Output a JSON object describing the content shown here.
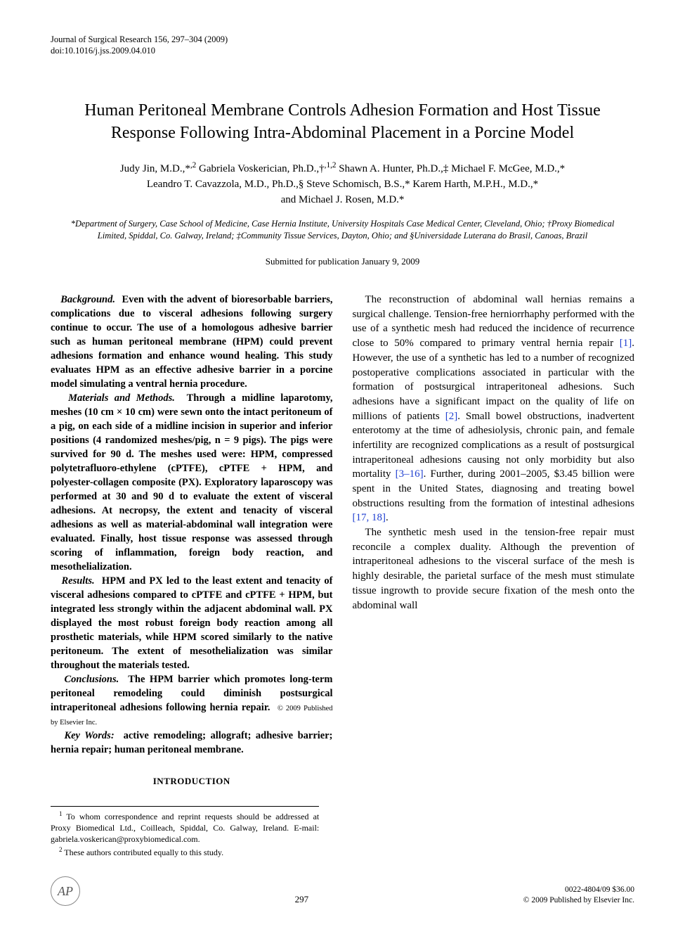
{
  "journal": {
    "citation": "Journal of Surgical Research 156, 297–304 (2009)",
    "doi": "doi:10.1016/j.jss.2009.04.010"
  },
  "title": "Human Peritoneal Membrane Controls Adhesion Formation and Host Tissue Response Following Intra-Abdominal Placement in a Porcine Model",
  "authors_html": "Judy Jin, M.D.,*<sup>,2</sup> Gabriela Voskerician, Ph.D.,†<sup>,1,2</sup> Shawn A. Hunter, Ph.D.,‡ Michael F. McGee, M.D.,* Leandro T. Cavazzola, M.D., Ph.D.,§ Steve Schomisch, B.S.,* Karem Harth, M.P.H., M.D.,* and Michael J. Rosen, M.D.*",
  "affiliations": "*Department of Surgery, Case School of Medicine, Case Hernia Institute, University Hospitals Case Medical Center, Cleveland, Ohio; †Proxy Biomedical Limited, Spiddal, Co. Galway, Ireland; ‡Community Tissue Services, Dayton, Ohio; and §Universidade Luterana do Brasil, Canoas, Brazil",
  "submitted": "Submitted for publication January 9, 2009",
  "abstract": {
    "background": {
      "label": "Background.",
      "text": "Even with the advent of bioresorbable barriers, complications due to visceral adhesions following surgery continue to occur. The use of a homologous adhesive barrier such as human peritoneal membrane (HPM) could prevent adhesions formation and enhance wound healing. This study evaluates HPM as an effective adhesive barrier in a porcine model simulating a ventral hernia procedure."
    },
    "methods": {
      "label": "Materials and Methods.",
      "text": "Through a midline laparotomy, meshes (10 cm × 10 cm) were sewn onto the intact peritoneum of a pig, on each side of a midline incision in superior and inferior positions (4 randomized meshes/pig, n = 9 pigs). The pigs were survived for 90 d. The meshes used were: HPM, compressed polytetrafluoro-ethylene (cPTFE), cPTFE + HPM, and polyester-collagen composite (PX). Exploratory laparoscopy was performed at 30 and 90 d to evaluate the extent of visceral adhesions. At necropsy, the extent and tenacity of visceral adhesions as well as material-abdominal wall integration were evaluated. Finally, host tissue response was assessed through scoring of inflammation, foreign body reaction, and mesothelialization."
    },
    "results": {
      "label": "Results.",
      "text": "HPM and PX led to the least extent and tenacity of visceral adhesions compared to cPTFE and cPTFE + HPM, but integrated less strongly within the adjacent abdominal wall. PX displayed the most robust foreign body reaction among all prosthetic materials, while HPM scored similarly to the native peritoneum. The extent of mesothelialization was similar throughout the materials tested."
    },
    "conclusions": {
      "label": "Conclusions.",
      "text": "The HPM barrier which promotes long-term peritoneal remodeling could diminish postsurgical intraperitoneal adhesions following hernia repair.",
      "copyright": "© 2009 Published by Elsevier Inc."
    },
    "keywords": {
      "label": "Key Words:",
      "text": "active remodeling; allograft; adhesive barrier; hernia repair; human peritoneal membrane."
    }
  },
  "introduction": {
    "heading": "INTRODUCTION",
    "para1_pre": "The reconstruction of abdominal wall hernias remains a surgical challenge. Tension-free herniorrhaphy performed with the use of a synthetic mesh had reduced the incidence of recurrence close to 50% compared to primary ventral hernia repair ",
    "ref1": "[1]",
    "para1_mid1": ". However, the use of a synthetic has led to a number of recognized postoperative complications associated in particular with the formation of postsurgical intraperitoneal adhesions. Such adhesions have a significant impact on the quality of life on millions of patients ",
    "ref2": "[2]",
    "para1_mid2": ". Small bowel obstructions, inadvertent enterotomy at the time of adhesiolysis, chronic pain, and female infertility are recognized complications as a result of postsurgical intraperitoneal adhesions causing not only morbidity but also mortality ",
    "ref3": "[3–16]",
    "para1_mid3": ". Further, during 2001–2005, $3.45 billion were spent in the United States, diagnosing and treating bowel obstructions resulting from the formation of intestinal adhesions ",
    "ref4": "[17, 18]",
    "para1_end": ".",
    "para2": "The synthetic mesh used in the tension-free repair must reconcile a complex duality. Although the prevention of intraperitoneal adhesions to the visceral surface of the mesh is highly desirable, the parietal surface of the mesh must stimulate tissue ingrowth to provide secure fixation of the mesh onto the abdominal wall"
  },
  "footnotes": {
    "fn1": "To whom correspondence and reprint requests should be addressed at Proxy Biomedical Ltd., Coilleach, Spiddal, Co. Galway, Ireland. E-mail: gabriela.voskerican@proxybiomedical.com.",
    "fn2": "These authors contributed equally to this study."
  },
  "footer": {
    "logo_letters": "AP",
    "page_number": "297",
    "issn_price": "0022-4804/09 $36.00",
    "copyright": "© 2009 Published by Elsevier Inc."
  },
  "colors": {
    "text": "#000000",
    "link": "#2040d0",
    "logo_border": "#888888",
    "background": "#ffffff"
  }
}
